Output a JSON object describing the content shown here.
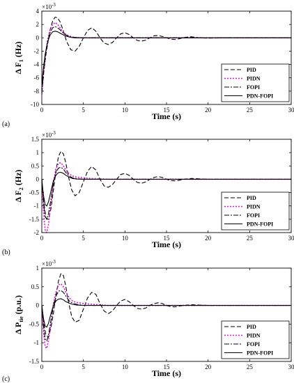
{
  "chart_data": [
    {
      "type": "line",
      "panel_label": "(a)",
      "multiplier_base": "×10",
      "multiplier_exp": "-3",
      "ylabel_main": "Δ F",
      "ylabel_sub": "1",
      "ylabel_unit": "(Hz)",
      "xlabel": "Time (s)",
      "xlim": [
        0,
        30
      ],
      "ylim": [
        -10,
        4
      ],
      "xticks": [
        0,
        5,
        10,
        15,
        20,
        25,
        30
      ],
      "yticks": [
        4,
        2,
        0,
        -2,
        -4,
        -6,
        -8,
        -10
      ],
      "legend_position": "lower-right",
      "series": [
        {
          "name": "PID",
          "color": "#000000",
          "dash": "6,3",
          "x": [
            0,
            0.25,
            0.5,
            0.8,
            1.0,
            1.3,
            1.6,
            1.9,
            2.2,
            2.6,
            3.0,
            3.5,
            4.0,
            4.5,
            5.0,
            5.5,
            6.0,
            6.5,
            7.0,
            7.5,
            8.0,
            8.5,
            9.0,
            9.5,
            10.0,
            10.5,
            11.0,
            11.5,
            12.0,
            12.5,
            13.0,
            13.5,
            14.0,
            14.5,
            15.0,
            15.5,
            16.0,
            16.5,
            17.0,
            17.5,
            18.0,
            18.5,
            19.0,
            20.0,
            22.0,
            25.0,
            30.0
          ],
          "y": [
            -8.3,
            -5.0,
            -2.5,
            -0.2,
            1.2,
            2.5,
            3.1,
            3.0,
            2.4,
            1.0,
            -0.6,
            -1.8,
            -2.0,
            -1.3,
            0.0,
            1.1,
            1.5,
            1.0,
            0.0,
            -0.8,
            -1.0,
            -0.7,
            0.0,
            0.6,
            0.75,
            0.5,
            0.0,
            -0.4,
            -0.5,
            -0.35,
            0.0,
            0.3,
            0.35,
            0.2,
            0.0,
            -0.2,
            -0.25,
            -0.15,
            0.0,
            0.12,
            0.15,
            0.08,
            0.0,
            -0.05,
            0.0,
            0.0,
            0.0
          ]
        },
        {
          "name": "PIDN",
          "color": "#e010e0",
          "dash": "2,2",
          "x": [
            0,
            0.2,
            0.4,
            0.7,
            1.0,
            1.3,
            1.6,
            1.9,
            2.2,
            2.5,
            2.8,
            3.2,
            3.6,
            4.0,
            5.0,
            6.0,
            8.0,
            10.0,
            15.0,
            20.0,
            30.0
          ],
          "y": [
            -8.5,
            -5.5,
            -2.8,
            -0.3,
            1.3,
            2.0,
            2.3,
            2.0,
            1.5,
            1.0,
            0.6,
            0.3,
            0.15,
            0.05,
            0.0,
            -0.02,
            0.0,
            0.0,
            0.0,
            0.0,
            0.0
          ]
        },
        {
          "name": "FOPI",
          "color": "#000000",
          "dash": "7,2,2,2",
          "x": [
            0,
            0.2,
            0.4,
            0.7,
            1.0,
            1.3,
            1.6,
            1.9,
            2.2,
            2.5,
            2.8,
            3.2,
            3.6,
            4.0,
            5.0,
            6.0,
            8.0,
            10.0,
            15.0,
            20.0,
            30.0
          ],
          "y": [
            -8.3,
            -5.3,
            -2.9,
            -0.6,
            0.8,
            1.5,
            1.7,
            1.5,
            1.2,
            0.8,
            0.5,
            0.25,
            0.1,
            0.05,
            0.0,
            0.0,
            0.0,
            0.0,
            0.0,
            0.0,
            0.0
          ]
        },
        {
          "name": "PDN-FOPI",
          "color": "#000000",
          "dash": "",
          "x": [
            0,
            0.2,
            0.4,
            0.7,
            1.0,
            1.3,
            1.6,
            1.9,
            2.2,
            2.5,
            2.8,
            3.2,
            3.6,
            4.0,
            5.0,
            6.0,
            8.0,
            10.0,
            15.0,
            20.0,
            30.0
          ],
          "y": [
            -7.0,
            -4.5,
            -2.5,
            -0.6,
            0.4,
            0.9,
            1.0,
            0.9,
            0.7,
            0.5,
            0.3,
            0.15,
            0.05,
            0.0,
            0.0,
            0.0,
            0.0,
            0.0,
            0.0,
            0.0,
            0.0
          ]
        }
      ]
    },
    {
      "type": "line",
      "panel_label": "(b)",
      "multiplier_base": "×10",
      "multiplier_exp": "-3",
      "ylabel_main": "Δ F",
      "ylabel_sub": "2",
      "ylabel_unit": "(Hz)",
      "xlabel": "Time (s)",
      "xlim": [
        0,
        30
      ],
      "ylim": [
        -2,
        1.5
      ],
      "xticks": [
        0,
        5,
        10,
        15,
        20,
        25,
        30
      ],
      "yticks": [
        1.5,
        1,
        0.5,
        0,
        -0.5,
        -1,
        -1.5,
        -2
      ],
      "legend_position": "lower-right",
      "series": [
        {
          "name": "PID",
          "color": "#000000",
          "dash": "6,3",
          "x": [
            0,
            0.25,
            0.5,
            0.8,
            1.1,
            1.4,
            1.7,
            2.0,
            2.3,
            2.6,
            2.9,
            3.2,
            3.6,
            4.0,
            4.5,
            5.0,
            5.5,
            6.0,
            6.5,
            7.0,
            7.5,
            8.0,
            8.5,
            9.0,
            9.5,
            10.0,
            10.5,
            11.0,
            11.5,
            12.0,
            12.5,
            13.0,
            13.5,
            14.0,
            14.5,
            15.0,
            15.5,
            16.0,
            16.5,
            17.0,
            18.0,
            20.0,
            25.0,
            30.0
          ],
          "y": [
            0.0,
            -0.9,
            -1.45,
            -1.5,
            -1.1,
            -0.4,
            0.3,
            0.85,
            1.05,
            0.95,
            0.6,
            0.1,
            -0.4,
            -0.62,
            -0.5,
            -0.1,
            0.3,
            0.48,
            0.35,
            0.0,
            -0.25,
            -0.3,
            -0.2,
            0.0,
            0.18,
            0.22,
            0.15,
            0.0,
            -0.12,
            -0.15,
            -0.1,
            0.0,
            0.07,
            0.1,
            0.07,
            0.0,
            -0.05,
            -0.06,
            -0.04,
            0.0,
            0.03,
            0.0,
            0.0,
            0.0
          ]
        },
        {
          "name": "PIDN",
          "color": "#e010e0",
          "dash": "2,2",
          "x": [
            0,
            0.2,
            0.4,
            0.6,
            0.8,
            1.1,
            1.4,
            1.7,
            2.0,
            2.3,
            2.6,
            2.9,
            3.3,
            3.7,
            4.2,
            5.0,
            6.0,
            8.0,
            10.0,
            15.0,
            20.0,
            30.0
          ],
          "y": [
            0.0,
            -1.2,
            -1.9,
            -2.0,
            -1.7,
            -0.9,
            -0.1,
            0.4,
            0.6,
            0.62,
            0.5,
            0.35,
            0.2,
            0.12,
            0.08,
            0.05,
            0.03,
            0.0,
            0.0,
            0.0,
            0.0,
            0.0
          ]
        },
        {
          "name": "FOPI",
          "color": "#000000",
          "dash": "7,2,2,2",
          "x": [
            0,
            0.2,
            0.4,
            0.6,
            0.8,
            1.1,
            1.4,
            1.7,
            2.0,
            2.3,
            2.6,
            2.9,
            3.3,
            3.7,
            4.2,
            5.0,
            6.0,
            8.0,
            10.0,
            15.0,
            20.0,
            30.0
          ],
          "y": [
            0.0,
            -0.9,
            -1.4,
            -1.5,
            -1.3,
            -0.75,
            -0.15,
            0.25,
            0.42,
            0.45,
            0.38,
            0.25,
            0.12,
            0.05,
            0.02,
            0.0,
            0.0,
            0.0,
            0.0,
            0.0,
            0.0,
            0.0
          ]
        },
        {
          "name": "PDN-FOPI",
          "color": "#000000",
          "dash": "",
          "x": [
            0,
            0.2,
            0.4,
            0.6,
            0.8,
            1.1,
            1.4,
            1.7,
            2.0,
            2.3,
            2.6,
            2.9,
            3.3,
            3.7,
            4.2,
            5.0,
            6.0,
            8.0,
            10.0,
            15.0,
            20.0,
            30.0
          ],
          "y": [
            0.0,
            -0.6,
            -0.95,
            -1.0,
            -0.85,
            -0.45,
            -0.05,
            0.15,
            0.25,
            0.26,
            0.22,
            0.15,
            0.08,
            0.03,
            0.01,
            0.0,
            0.0,
            0.0,
            0.0,
            0.0,
            0.0,
            0.0
          ]
        }
      ]
    },
    {
      "type": "line",
      "panel_label": "(c)",
      "multiplier_base": "×10",
      "multiplier_exp": "-3",
      "ylabel_main": "Δ P",
      "ylabel_sub": "tie",
      "ylabel_unit": "(p.u.)",
      "xlabel": "Time (s)",
      "xlim": [
        0,
        30
      ],
      "ylim": [
        -1.5,
        1
      ],
      "xticks": [
        0,
        5,
        10,
        15,
        20,
        25,
        30
      ],
      "yticks": [
        1,
        0.5,
        0,
        -0.5,
        -1,
        -1.5
      ],
      "legend_position": "lower-right",
      "series": [
        {
          "name": "PID",
          "color": "#000000",
          "dash": "6,3",
          "x": [
            0,
            0.25,
            0.5,
            0.8,
            1.1,
            1.4,
            1.7,
            2.0,
            2.3,
            2.6,
            2.9,
            3.2,
            3.6,
            4.0,
            4.5,
            5.0,
            5.5,
            6.0,
            6.5,
            7.0,
            7.5,
            8.0,
            8.5,
            9.0,
            9.5,
            10.0,
            10.5,
            11.0,
            11.5,
            12.0,
            12.5,
            13.0,
            13.5,
            14.0,
            14.5,
            15.0,
            15.5,
            16.0,
            17.0,
            18.0,
            20.0,
            25.0,
            30.0
          ],
          "y": [
            0.0,
            -0.5,
            -0.8,
            -0.85,
            -0.6,
            -0.2,
            0.25,
            0.65,
            0.85,
            0.8,
            0.5,
            0.1,
            -0.3,
            -0.45,
            -0.4,
            -0.1,
            0.2,
            0.35,
            0.3,
            0.05,
            -0.15,
            -0.22,
            -0.15,
            0.0,
            0.12,
            0.16,
            0.1,
            0.0,
            -0.08,
            -0.1,
            -0.07,
            0.0,
            0.05,
            0.07,
            0.05,
            0.0,
            -0.03,
            -0.04,
            0.0,
            0.02,
            0.0,
            0.0,
            0.0
          ]
        },
        {
          "name": "PIDN",
          "color": "#e010e0",
          "dash": "2,2",
          "x": [
            0,
            0.2,
            0.4,
            0.6,
            0.8,
            1.1,
            1.4,
            1.7,
            2.0,
            2.3,
            2.6,
            2.9,
            3.3,
            3.7,
            4.2,
            5.0,
            6.0,
            8.0,
            10.0,
            15.0,
            20.0,
            30.0
          ],
          "y": [
            0.0,
            -0.7,
            -1.1,
            -1.15,
            -0.95,
            -0.45,
            0.05,
            0.35,
            0.55,
            0.58,
            0.5,
            0.35,
            0.2,
            0.12,
            0.08,
            0.05,
            0.03,
            0.0,
            0.0,
            0.0,
            0.0,
            0.0
          ]
        },
        {
          "name": "FOPI",
          "color": "#000000",
          "dash": "7,2,2,2",
          "x": [
            0,
            0.2,
            0.4,
            0.6,
            0.8,
            1.1,
            1.4,
            1.7,
            2.0,
            2.3,
            2.6,
            2.9,
            3.3,
            3.7,
            4.2,
            5.0,
            6.0,
            8.0,
            10.0,
            15.0,
            20.0,
            30.0
          ],
          "y": [
            0.0,
            -0.55,
            -0.9,
            -0.95,
            -0.8,
            -0.4,
            0.0,
            0.25,
            0.38,
            0.4,
            0.35,
            0.25,
            0.12,
            0.06,
            0.03,
            0.0,
            0.0,
            0.0,
            0.0,
            0.0,
            0.0,
            0.0
          ]
        },
        {
          "name": "PDN-FOPI",
          "color": "#000000",
          "dash": "",
          "x": [
            0,
            0.2,
            0.4,
            0.6,
            0.8,
            1.1,
            1.4,
            1.7,
            2.0,
            2.3,
            2.6,
            2.9,
            3.3,
            3.7,
            4.2,
            5.0,
            6.0,
            8.0,
            10.0,
            15.0,
            20.0,
            30.0
          ],
          "y": [
            0.0,
            -0.35,
            -0.55,
            -0.58,
            -0.48,
            -0.22,
            0.0,
            0.12,
            0.17,
            0.18,
            0.15,
            0.1,
            0.06,
            0.03,
            0.01,
            0.0,
            0.0,
            0.0,
            0.0,
            0.0,
            0.0,
            0.0
          ]
        }
      ]
    }
  ]
}
